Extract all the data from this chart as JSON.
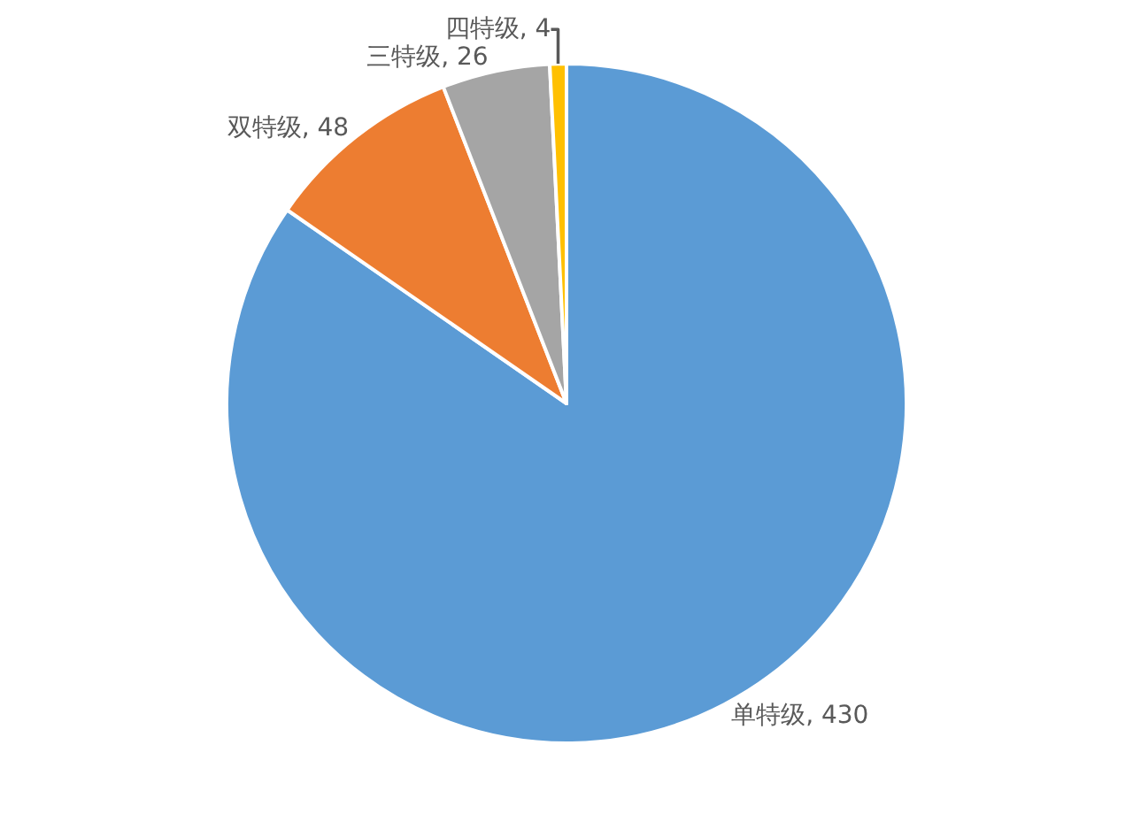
{
  "chart_data": {
    "type": "pie",
    "categories": [
      "单特级",
      "双特级",
      "三特级",
      "四特级"
    ],
    "values": [
      430,
      48,
      26,
      4
    ],
    "colors": [
      "#5b9bd5",
      "#ed7d31",
      "#a5a5a5",
      "#ffc000"
    ],
    "value_labels": [
      "430",
      "48",
      "26",
      "4"
    ]
  }
}
